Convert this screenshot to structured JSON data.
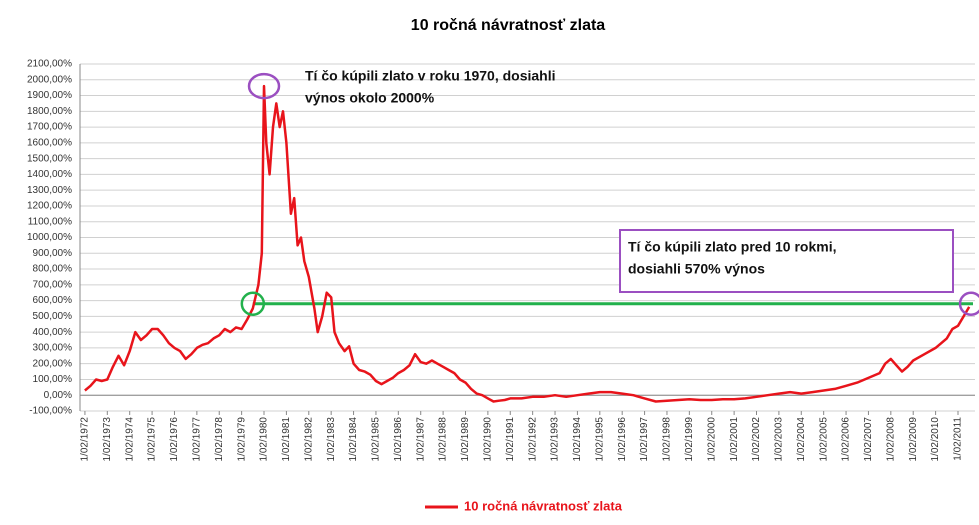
{
  "chart_data": {
    "type": "line",
    "title": "10 ročná návratnosť zlata",
    "x": [
      1972.0,
      1972.25,
      1972.5,
      1972.75,
      1973.0,
      1973.25,
      1973.5,
      1973.75,
      1974.0,
      1974.25,
      1974.5,
      1974.75,
      1975.0,
      1975.25,
      1975.5,
      1975.75,
      1976.0,
      1976.25,
      1976.5,
      1976.75,
      1977.0,
      1977.25,
      1977.5,
      1977.75,
      1978.0,
      1978.25,
      1978.5,
      1978.75,
      1979.0,
      1979.25,
      1979.5,
      1979.75,
      1979.9,
      1980.0,
      1980.1,
      1980.25,
      1980.4,
      1980.55,
      1980.7,
      1980.85,
      1981.0,
      1981.2,
      1981.35,
      1981.5,
      1981.65,
      1981.8,
      1982.0,
      1982.25,
      1982.4,
      1982.6,
      1982.8,
      1983.0,
      1983.15,
      1983.35,
      1983.6,
      1983.8,
      1984.0,
      1984.25,
      1984.5,
      1984.75,
      1985.0,
      1985.25,
      1985.5,
      1985.75,
      1986.0,
      1986.25,
      1986.5,
      1986.75,
      1987.0,
      1987.25,
      1987.5,
      1987.75,
      1988.0,
      1988.25,
      1988.5,
      1988.75,
      1989.0,
      1989.25,
      1989.5,
      1989.75,
      1990.0,
      1990.25,
      1990.5,
      1990.75,
      1991.0,
      1991.5,
      1992.0,
      1992.5,
      1993.0,
      1993.5,
      1994.0,
      1994.5,
      1995.0,
      1995.5,
      1996.0,
      1996.5,
      1997.0,
      1997.5,
      1998.0,
      1998.5,
      1999.0,
      1999.5,
      2000.0,
      2000.5,
      2001.0,
      2001.5,
      2002.0,
      2002.5,
      2003.0,
      2003.5,
      2004.0,
      2004.5,
      2005.0,
      2005.5,
      2006.0,
      2006.5,
      2007.0,
      2007.5,
      2007.75,
      2008.0,
      2008.25,
      2008.5,
      2008.75,
      2009.0,
      2009.5,
      2010.0,
      2010.5,
      2010.75,
      2011.0,
      2011.25,
      2011.5
    ],
    "series": [
      {
        "name": "10 ročná návratnosť zlata",
        "color": "#e8141b",
        "values": [
          30,
          60,
          100,
          90,
          100,
          180,
          250,
          190,
          280,
          400,
          350,
          380,
          420,
          420,
          380,
          330,
          300,
          280,
          230,
          260,
          300,
          320,
          330,
          360,
          380,
          420,
          400,
          430,
          420,
          480,
          550,
          700,
          900,
          1960,
          1600,
          1400,
          1700,
          1850,
          1700,
          1800,
          1600,
          1150,
          1250,
          950,
          1000,
          850,
          750,
          550,
          400,
          500,
          650,
          620,
          400,
          330,
          280,
          310,
          200,
          160,
          150,
          130,
          90,
          70,
          90,
          110,
          140,
          160,
          190,
          260,
          210,
          200,
          220,
          200,
          180,
          160,
          140,
          100,
          80,
          40,
          10,
          0,
          -20,
          -40,
          -35,
          -30,
          -20,
          -20,
          -10,
          -10,
          0,
          -10,
          0,
          10,
          20,
          20,
          10,
          0,
          -20,
          -40,
          -35,
          -30,
          -25,
          -30,
          -30,
          -25,
          -25,
          -20,
          -10,
          0,
          10,
          20,
          10,
          20,
          30,
          40,
          60,
          80,
          110,
          140,
          200,
          230,
          190,
          150,
          180,
          220,
          260,
          300,
          360,
          420,
          440,
          500,
          560
        ]
      }
    ],
    "xlim": [
      1971.78,
      2011.76
    ],
    "xticks": [
      {
        "value": 1972,
        "label": "1/02/1972"
      },
      {
        "value": 1973,
        "label": "1/02/1973"
      },
      {
        "value": 1974,
        "label": "1/02/1974"
      },
      {
        "value": 1975,
        "label": "1/02/1975"
      },
      {
        "value": 1976,
        "label": "1/02/1976"
      },
      {
        "value": 1977,
        "label": "1/02/1977"
      },
      {
        "value": 1978,
        "label": "1/02/1978"
      },
      {
        "value": 1979,
        "label": "1/02/1979"
      },
      {
        "value": 1980,
        "label": "1/02/1980"
      },
      {
        "value": 1981,
        "label": "1/02/1981"
      },
      {
        "value": 1982,
        "label": "1/02/1982"
      },
      {
        "value": 1983,
        "label": "1/02/1983"
      },
      {
        "value": 1984,
        "label": "1/02/1984"
      },
      {
        "value": 1985,
        "label": "1/02/1985"
      },
      {
        "value": 1986,
        "label": "1/02/1986"
      },
      {
        "value": 1987,
        "label": "1/02/1987"
      },
      {
        "value": 1988,
        "label": "1/02/1988"
      },
      {
        "value": 1989,
        "label": "1/02/1989"
      },
      {
        "value": 1990,
        "label": "1/02/1990"
      },
      {
        "value": 1991,
        "label": "1/02/1991"
      },
      {
        "value": 1992,
        "label": "1/02/1992"
      },
      {
        "value": 1993,
        "label": "1/02/1993"
      },
      {
        "value": 1994,
        "label": "1/02/1994"
      },
      {
        "value": 1995,
        "label": "1/02/1995"
      },
      {
        "value": 1996,
        "label": "1/02/1996"
      },
      {
        "value": 1997,
        "label": "1/02/1997"
      },
      {
        "value": 1998,
        "label": "1/02/1998"
      },
      {
        "value": 1999,
        "label": "1/02/1999"
      },
      {
        "value": 2000,
        "label": "1/02/2000"
      },
      {
        "value": 2001,
        "label": "1/02/2001"
      },
      {
        "value": 2002,
        "label": "1/02/2002"
      },
      {
        "value": 2003,
        "label": "1/02/2003"
      },
      {
        "value": 2004,
        "label": "1/02/2004"
      },
      {
        "value": 2005,
        "label": "1/02/2005"
      },
      {
        "value": 2006,
        "label": "1/02/2006"
      },
      {
        "value": 2007,
        "label": "1/02/2007"
      },
      {
        "value": 2008,
        "label": "1/02/2008"
      },
      {
        "value": 2009,
        "label": "1/02/2009"
      },
      {
        "value": 2010,
        "label": "1/02/2010"
      },
      {
        "value": 2011,
        "label": "1/02/2011"
      }
    ],
    "ylim": [
      -100,
      2100
    ],
    "yticks": [
      {
        "value": -100,
        "label": "-100,00%"
      },
      {
        "value": 0,
        "label": "0,00%"
      },
      {
        "value": 100,
        "label": "100,00%"
      },
      {
        "value": 200,
        "label": "200,00%"
      },
      {
        "value": 300,
        "label": "300,00%"
      },
      {
        "value": 400,
        "label": "400,00%"
      },
      {
        "value": 500,
        "label": "500,00%"
      },
      {
        "value": 600,
        "label": "600,00%"
      },
      {
        "value": 700,
        "label": "700,00%"
      },
      {
        "value": 800,
        "label": "800,00%"
      },
      {
        "value": 900,
        "label": "900,00%"
      },
      {
        "value": 1000,
        "label": "1000,00%"
      },
      {
        "value": 1100,
        "label": "1100,00%"
      },
      {
        "value": 1200,
        "label": "1200,00%"
      },
      {
        "value": 1300,
        "label": "1300,00%"
      },
      {
        "value": 1400,
        "label": "1400,00%"
      },
      {
        "value": 1500,
        "label": "1500,00%"
      },
      {
        "value": 1600,
        "label": "1600,00%"
      },
      {
        "value": 1700,
        "label": "1700,00%"
      },
      {
        "value": 1800,
        "label": "1800,00%"
      },
      {
        "value": 1900,
        "label": "1900,00%"
      },
      {
        "value": 2000,
        "label": "2000,00%"
      },
      {
        "value": 2100,
        "label": "2100,00%"
      }
    ],
    "grid": true,
    "legend": "bottom",
    "reference_line": {
      "value": 580,
      "from": 1979.5,
      "color": "#22b14c"
    },
    "highlight_color": "#9b4fc1",
    "annotations": [
      {
        "lines": [
          "Tí čo kúpili zlato v roku 1970, dosiahli",
          "výnos okolo 2000%"
        ],
        "border": false
      },
      {
        "lines": [
          "Tí čo kúpili zlato pred 10 rokmi,",
          "dosiahli 570% výnos"
        ],
        "border": true
      }
    ]
  }
}
